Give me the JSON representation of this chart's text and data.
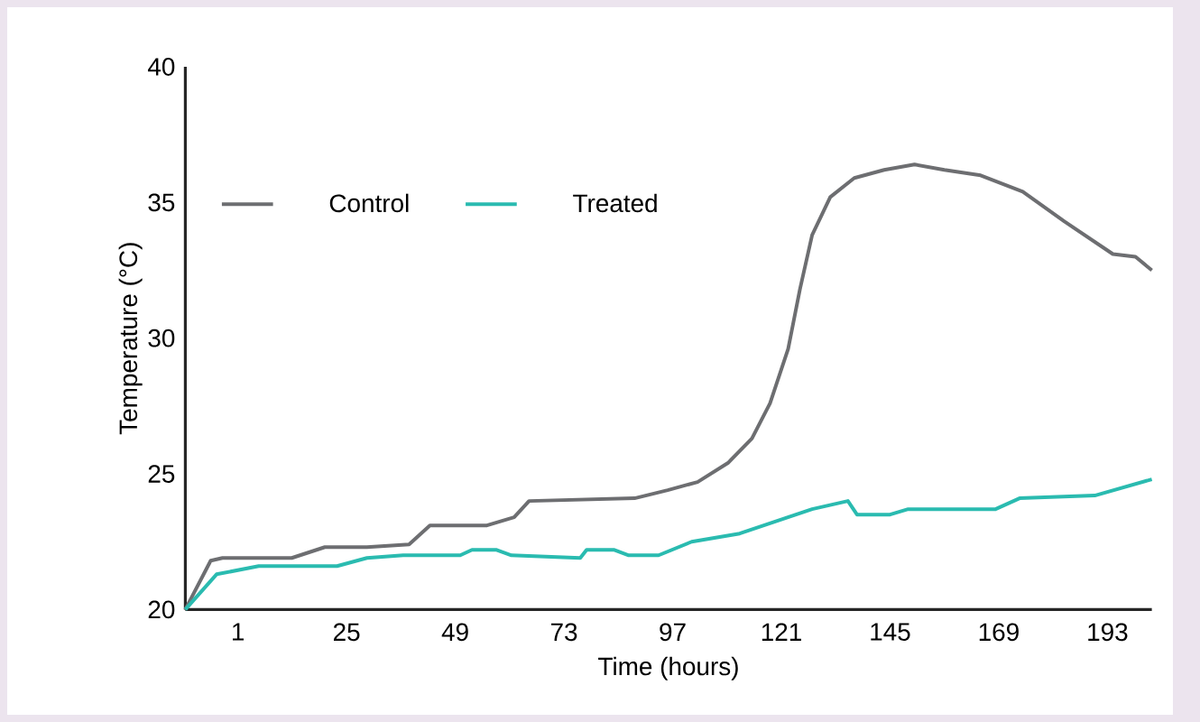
{
  "chart_data": {
    "type": "line",
    "xlabel": "Time (hours)",
    "ylabel": "Temperature (°C)",
    "xlim": [
      -10.6,
      202.8
    ],
    "xticks": [
      1,
      25,
      49,
      73,
      97,
      121,
      145,
      169,
      193
    ],
    "ylim": [
      20,
      40
    ],
    "yticks": [
      20,
      25,
      30,
      35,
      40
    ],
    "legend": "top left",
    "series": [
      {
        "name": "Control",
        "color": "#6d6e71",
        "x": [
          -10.6,
          -5,
          -2.4,
          12.9,
          20.2,
          29.5,
          38.8,
          43.4,
          56,
          62,
          65.3,
          88.6,
          95.9,
          102.5,
          109.2,
          114.5,
          118.5,
          122.5,
          125.1,
          127.8,
          131.8,
          137.1,
          143.7,
          150.4,
          157,
          165,
          174.3,
          183.5,
          194.2,
          199.2,
          202.8
        ],
        "values": [
          20,
          21.8,
          21.9,
          21.9,
          22.3,
          22.3,
          22.4,
          23.1,
          23.1,
          23.4,
          24,
          24.1,
          24.4,
          24.7,
          25.4,
          26.3,
          27.6,
          29.6,
          31.8,
          33.8,
          35.2,
          35.9,
          36.2,
          36.4,
          36.2,
          36,
          35.4,
          34.3,
          33.1,
          33,
          32.5
        ]
      },
      {
        "name": "Treated",
        "color": "#2abbb0",
        "x": [
          -10.6,
          -3.7,
          5.6,
          22.9,
          29.5,
          37.5,
          50.1,
          52.7,
          58,
          61.4,
          76.6,
          78,
          84,
          87.3,
          93.9,
          101.2,
          111.8,
          127.8,
          135.7,
          137.7,
          145,
          149,
          168.3,
          173.6,
          190.2,
          202.8
        ],
        "values": [
          20,
          21.3,
          21.6,
          21.6,
          21.9,
          22,
          22,
          22.2,
          22.2,
          22,
          21.9,
          22.2,
          22.2,
          22,
          22,
          22.5,
          22.8,
          23.7,
          24,
          23.5,
          23.5,
          23.7,
          23.7,
          24.1,
          24.2,
          24.8
        ]
      }
    ]
  }
}
